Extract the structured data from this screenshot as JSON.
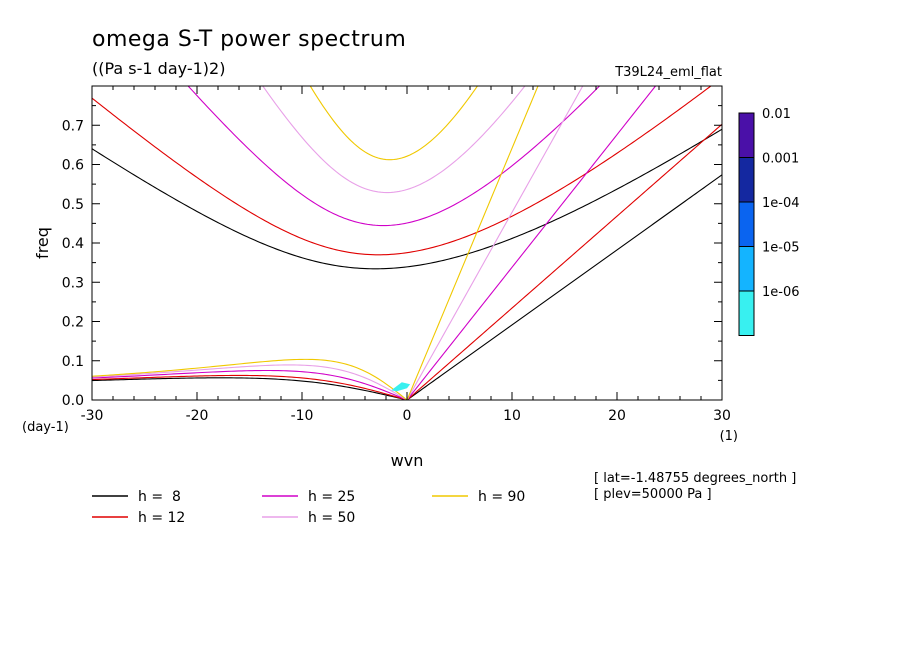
{
  "header": {
    "title": "omega S-T power spectrum",
    "units": "((Pa s-1 day-1)2)",
    "run_name": "T39L24_eml_flat"
  },
  "chart_data": {
    "type": "line",
    "xlabel": "wvn",
    "ylabel": "freq",
    "x_unit": "(1)",
    "y_unit": "(day-1)",
    "xlim": [
      -30,
      30
    ],
    "ylim": [
      0,
      0.8
    ],
    "x_ticks": [
      -30,
      -20,
      -10,
      0,
      10,
      20,
      30
    ],
    "x_tick_labels": [
      "-30",
      "-20",
      "-10",
      "0",
      "10",
      "20",
      "30"
    ],
    "y_ticks": [
      0,
      0.1,
      0.2,
      0.3,
      0.4,
      0.5,
      0.6,
      0.7
    ],
    "y_tick_labels": [
      "0.0",
      "0.1",
      "0.2",
      "0.3",
      "0.4",
      "0.5",
      "0.6",
      "0.7"
    ],
    "grid": false,
    "legend_placement": "bottom",
    "series": [
      {
        "name": "h =  8",
        "h": 8,
        "color": "#000000"
      },
      {
        "name": "h = 12",
        "h": 12,
        "color": "#e00000"
      },
      {
        "name": "h = 25",
        "h": 25,
        "color": "#d000c8"
      },
      {
        "name": "h = 50",
        "h": 50,
        "color": "#e8a0e8"
      },
      {
        "name": "h = 90",
        "h": 90,
        "color": "#f0c800"
      }
    ],
    "colorbar": {
      "labels": [
        "0.01",
        "0.001",
        "1e-04",
        "1e-05",
        "1e-06"
      ],
      "colors": [
        "#4a10a8",
        "#1428a0",
        "#0a64f0",
        "#14b4ff",
        "#38f0f0"
      ]
    },
    "spectral_blob": {
      "color": "#38f0f0",
      "points": [
        [
          -1.5,
          0.025
        ],
        [
          -0.5,
          0.045
        ],
        [
          0.3,
          0.04
        ],
        [
          0.0,
          0.03
        ],
        [
          -1.0,
          0.022
        ]
      ]
    },
    "annotations": [
      "[ lat=-1.48755 degrees_north ]",
      "[ plev=50000 Pa ]"
    ]
  }
}
